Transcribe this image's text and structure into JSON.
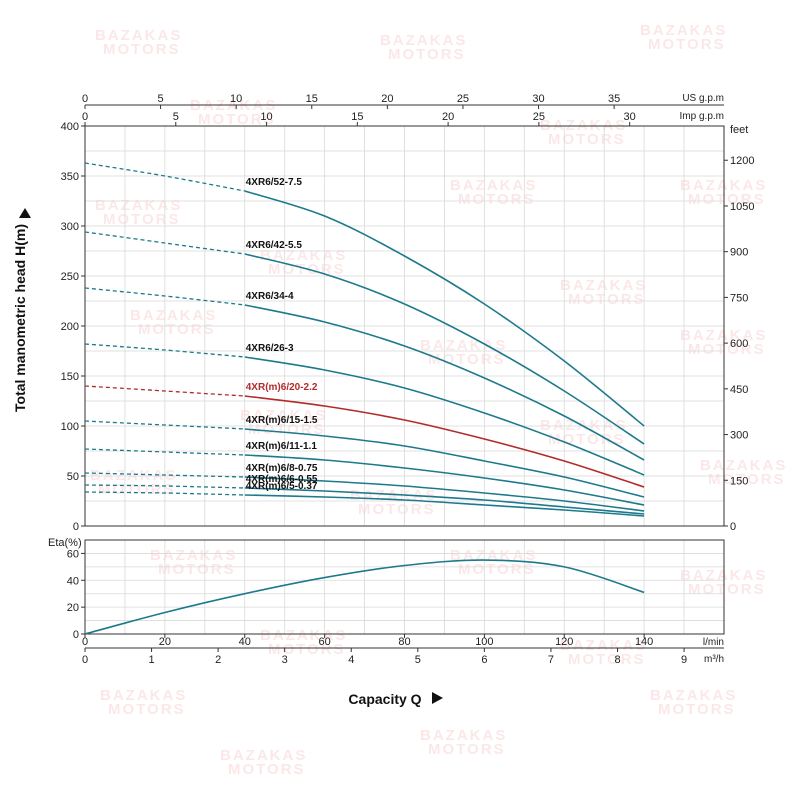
{
  "watermark": {
    "line1": "BAZAKAS",
    "line2": "MOTORS"
  },
  "colors": {
    "teal": "#1c7a8c",
    "highlight": "#b22b2b",
    "grid": "#d9d9d9"
  },
  "chart_data": [
    {
      "type": "line",
      "id": "head",
      "ylabel": "Total manometric head H(m)",
      "ylim": [
        0,
        400
      ],
      "y_ticks": [
        0,
        50,
        100,
        150,
        200,
        250,
        300,
        350,
        400
      ],
      "y2_label": "feet",
      "y2_ticks": [
        0,
        150,
        300,
        450,
        600,
        750,
        900,
        1050,
        1200
      ],
      "xlim_lpm": [
        0,
        160
      ],
      "top_axis_us": {
        "label": "US g.p.m",
        "ticks": [
          0,
          5,
          10,
          15,
          20,
          25,
          30,
          35
        ]
      },
      "top_axis_imp": {
        "label": "Imp g.p.m",
        "ticks": [
          0,
          5,
          10,
          15,
          20,
          25,
          30
        ]
      },
      "dashed_until_lpm": 40,
      "grid": true,
      "series": [
        {
          "name": "4XR6/52-7.5",
          "color": "#1c7a8c",
          "x": [
            0,
            20,
            40,
            60,
            80,
            100,
            120,
            140
          ],
          "y": [
            363,
            350,
            335,
            310,
            270,
            222,
            165,
            100
          ]
        },
        {
          "name": "4XR6/42-5.5",
          "color": "#1c7a8c",
          "x": [
            0,
            20,
            40,
            60,
            80,
            100,
            120,
            140
          ],
          "y": [
            294,
            283,
            272,
            252,
            222,
            182,
            135,
            82
          ]
        },
        {
          "name": "4XR6/34-4",
          "color": "#1c7a8c",
          "x": [
            0,
            20,
            40,
            60,
            80,
            100,
            120,
            140
          ],
          "y": [
            238,
            230,
            221,
            204,
            180,
            148,
            110,
            66
          ]
        },
        {
          "name": "4XR6/26-3",
          "color": "#1c7a8c",
          "x": [
            0,
            20,
            40,
            60,
            80,
            100,
            120,
            140
          ],
          "y": [
            182,
            176,
            169,
            156,
            138,
            113,
            84,
            51
          ]
        },
        {
          "name": "4XR(m)6/20-2.2",
          "color": "#b22b2b",
          "x": [
            0,
            20,
            40,
            60,
            80,
            100,
            120,
            140
          ],
          "y": [
            140,
            135,
            130,
            120,
            106,
            87,
            65,
            39
          ]
        },
        {
          "name": "4XR(m)6/15-1.5",
          "color": "#1c7a8c",
          "x": [
            0,
            20,
            40,
            60,
            80,
            100,
            120,
            140
          ],
          "y": [
            105,
            101,
            97,
            90,
            80,
            65,
            49,
            29
          ]
        },
        {
          "name": "4XR(m)6/11-1.1",
          "color": "#1c7a8c",
          "x": [
            0,
            20,
            40,
            60,
            80,
            100,
            120,
            140
          ],
          "y": [
            77,
            74,
            71,
            66,
            58,
            48,
            36,
            21
          ]
        },
        {
          "name": "4XR(m)6/8-0.75",
          "color": "#1c7a8c",
          "x": [
            0,
            20,
            40,
            60,
            80,
            100,
            120,
            140
          ],
          "y": [
            53,
            51,
            49,
            45,
            40,
            33,
            25,
            15
          ]
        },
        {
          "name": "4XR(m)6/6-0.55",
          "color": "#1c7a8c",
          "x": [
            0,
            20,
            40,
            60,
            80,
            100,
            120,
            140
          ],
          "y": [
            41,
            40,
            38,
            35,
            31,
            26,
            19,
            12
          ]
        },
        {
          "name": "4XR(m)6/5-0.37",
          "color": "#1c7a8c",
          "x": [
            0,
            20,
            40,
            60,
            80,
            100,
            120,
            140
          ],
          "y": [
            34,
            33,
            31,
            29,
            26,
            21,
            16,
            10
          ]
        }
      ]
    },
    {
      "type": "line",
      "id": "efficiency",
      "ylabel": "Eta(%)",
      "ylim": [
        0,
        70
      ],
      "y_ticks": [
        0,
        20,
        40,
        60
      ],
      "grid": true,
      "series": [
        {
          "name": "",
          "color": "#1c7a8c",
          "x": [
            0,
            20,
            40,
            60,
            80,
            100,
            120,
            140
          ],
          "y": [
            0,
            16,
            30,
            42,
            51,
            55,
            50,
            31
          ]
        }
      ]
    }
  ],
  "bottom_axis_lpm": {
    "label": "l/min",
    "ticks": [
      0,
      20,
      40,
      60,
      80,
      100,
      120,
      140
    ]
  },
  "bottom_axis_m3h": {
    "label": "m³/h",
    "ticks": [
      0,
      1,
      2,
      3,
      4,
      5,
      6,
      7,
      8,
      9
    ]
  },
  "xlabel": "Capacity Q"
}
